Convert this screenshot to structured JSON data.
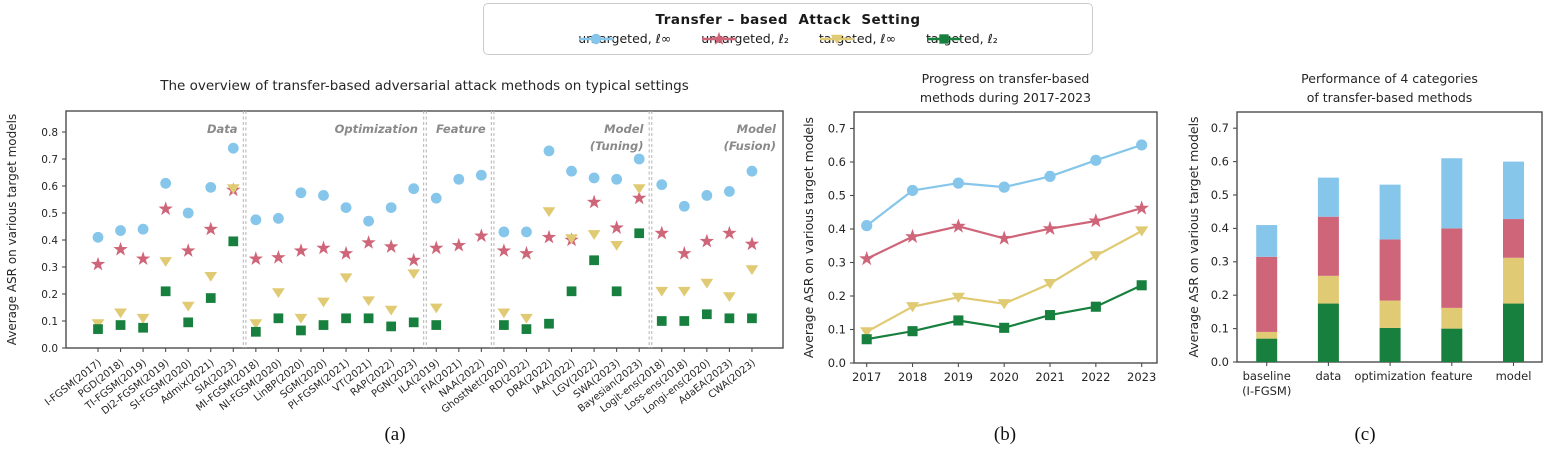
{
  "page": {
    "background": "#ffffff"
  },
  "palette": {
    "untargeted_linf": "#85c6ea",
    "untargeted_l2": "#cf6579",
    "targeted_linf": "#e0ca74",
    "targeted_l2": "#17803e",
    "section_label": "#8a8a8a",
    "axis": "#4d4d4d",
    "text": "#262626"
  },
  "legend": {
    "title": "Transfer – based  Attack  Setting",
    "entries": [
      {
        "label": "untargeted, ℓ∞",
        "marker": "circle",
        "color": "#85c6ea"
      },
      {
        "label": "untargeted, ℓ₂",
        "marker": "star",
        "color": "#cf6579"
      },
      {
        "label": "targeted, ℓ∞",
        "marker": "triangle-down",
        "color": "#e0ca74"
      },
      {
        "label": "targeted, ℓ₂",
        "marker": "square",
        "color": "#17803e"
      }
    ]
  },
  "captions": {
    "a": "(a)",
    "b": "(b)",
    "c": "(c)"
  },
  "chart_data": [
    {
      "id": "overview",
      "type": "scatter",
      "title": "The overview of transfer-based adversarial attack methods on typical settings",
      "ylabel": "Average ASR on various target models",
      "ylim": [
        0.0,
        0.88
      ],
      "yticks": [
        "0.0",
        "0.1",
        "0.2",
        "0.3",
        "0.4",
        "0.5",
        "0.6",
        "0.7",
        "0.8"
      ],
      "grid": false,
      "sections": [
        {
          "label": "Data",
          "start": 0,
          "end": 6
        },
        {
          "label": "Optimization",
          "start": 7,
          "end": 14
        },
        {
          "label": "Feature",
          "start": 15,
          "end": 17
        },
        {
          "label": "Model\n(Tuning)",
          "start": 18,
          "end": 24
        },
        {
          "label": "Model\n(Fusion)",
          "start": 25,
          "end": 29
        }
      ],
      "categories": [
        "I-FGSM(2017)",
        "PGD(2018)",
        "TI-FGSM(2019)",
        "DI2-FGSM(2019)",
        "SI-FGSM(2020)",
        "Admix(2021)",
        "SIA(2023)",
        "MI-FGSM(2018)",
        "NI-FGSM(2020)",
        "LinBP(2020)",
        "SGM(2020)",
        "PI-FGSM(2021)",
        "VT(2021)",
        "RAP(2022)",
        "PGN(2023)",
        "ILA(2019)",
        "FIA(2021)",
        "NAA(2022)",
        "GhostNet(2020)",
        "RD(2022)",
        "DRA(2022)",
        "IAA(2022)",
        "LGV(2022)",
        "SWA(2023)",
        "Bayesian(2023)",
        "Logit-ens(2018)",
        "Loss-ens(2018)",
        "Longi-ens(2020)",
        "AdaEA(2023)",
        "CWA(2023)"
      ],
      "series": [
        {
          "name": "untargeted, ℓ∞",
          "marker": "circle",
          "color": "#85c6ea",
          "values": [
            0.41,
            0.435,
            0.44,
            0.61,
            0.5,
            0.595,
            0.74,
            0.475,
            0.48,
            0.575,
            0.565,
            0.52,
            0.47,
            0.52,
            0.59,
            0.555,
            0.625,
            0.64,
            0.43,
            0.43,
            0.73,
            0.655,
            0.63,
            0.625,
            0.7,
            0.605,
            0.525,
            0.565,
            0.58,
            0.655
          ]
        },
        {
          "name": "untargeted, ℓ₂",
          "marker": "star",
          "color": "#cf6579",
          "values": [
            0.31,
            0.365,
            0.33,
            0.515,
            0.36,
            0.44,
            0.585,
            0.33,
            0.335,
            0.36,
            0.37,
            0.35,
            0.39,
            0.375,
            0.325,
            0.37,
            0.38,
            0.415,
            0.36,
            0.35,
            0.41,
            0.4,
            0.54,
            0.445,
            0.555,
            0.425,
            0.35,
            0.395,
            0.425,
            0.385
          ]
        },
        {
          "name": "targeted, ℓ∞",
          "marker": "triangle-down",
          "color": "#e0ca74",
          "values": [
            0.09,
            0.13,
            0.11,
            0.32,
            0.155,
            0.265,
            0.59,
            0.09,
            0.205,
            0.11,
            0.17,
            0.26,
            0.175,
            0.14,
            0.275,
            0.148,
            null,
            null,
            0.13,
            0.11,
            0.505,
            0.405,
            0.42,
            0.38,
            0.59,
            0.21,
            0.21,
            0.24,
            0.19,
            0.29
          ]
        },
        {
          "name": "targeted, ℓ₂",
          "marker": "square",
          "color": "#17803e",
          "values": [
            0.07,
            0.085,
            0.075,
            0.21,
            0.095,
            0.185,
            0.395,
            0.06,
            0.11,
            0.065,
            0.085,
            0.11,
            0.11,
            0.08,
            0.095,
            0.085,
            null,
            null,
            0.085,
            0.07,
            0.09,
            0.21,
            0.325,
            0.21,
            0.425,
            0.1,
            0.1,
            0.125,
            0.11,
            0.11
          ]
        }
      ]
    },
    {
      "id": "progress",
      "type": "line",
      "title": "Progress on transfer-based\nmethods during 2017-2023",
      "ylabel": "Average ASR on various target models",
      "ylim": [
        0.0,
        0.75
      ],
      "yticks": [
        "0.0",
        "0.1",
        "0.2",
        "0.3",
        "0.4",
        "0.5",
        "0.6",
        "0.7"
      ],
      "grid": false,
      "x": [
        "2017",
        "2018",
        "2019",
        "2020",
        "2021",
        "2022",
        "2023"
      ],
      "series": [
        {
          "name": "untargeted, ℓ∞",
          "marker": "circle",
          "color": "#85c6ea",
          "values": [
            0.41,
            0.515,
            0.537,
            0.525,
            0.557,
            0.605,
            0.651
          ]
        },
        {
          "name": "untargeted, ℓ₂",
          "marker": "star",
          "color": "#cf6579",
          "values": [
            0.311,
            0.377,
            0.408,
            0.372,
            0.401,
            0.424,
            0.462
          ]
        },
        {
          "name": "targeted, ℓ∞",
          "marker": "triangle-down",
          "color": "#e0ca74",
          "values": [
            0.093,
            0.168,
            0.196,
            0.177,
            0.237,
            0.32,
            0.394
          ]
        },
        {
          "name": "targeted, ℓ₂",
          "marker": "square",
          "color": "#17803e",
          "values": [
            0.071,
            0.095,
            0.127,
            0.105,
            0.143,
            0.168,
            0.232
          ]
        }
      ]
    },
    {
      "id": "categories",
      "type": "stacked-bar",
      "title": "Performance of 4 categories\nof transfer-based methods",
      "ylabel": "Average ASR on various target models",
      "ylim": [
        0.0,
        0.75
      ],
      "yticks": [
        "0.0",
        "0.1",
        "0.2",
        "0.3",
        "0.4",
        "0.5",
        "0.6",
        "0.7"
      ],
      "grid": false,
      "categories": [
        "baseline\n(I-FGSM)",
        "data",
        "optimization",
        "feature",
        "model"
      ],
      "series": [
        {
          "name": "targeted, ℓ₂",
          "color": "#17803e",
          "values": [
            0.07,
            0.175,
            0.102,
            0.1,
            0.175
          ]
        },
        {
          "name": "targeted, ℓ∞",
          "color": "#e0ca74",
          "values": [
            0.02,
            0.083,
            0.082,
            0.062,
            0.137
          ]
        },
        {
          "name": "untargeted, ℓ₂",
          "color": "#cf6579",
          "values": [
            0.225,
            0.177,
            0.183,
            0.238,
            0.116
          ]
        },
        {
          "name": "untargeted, ℓ∞",
          "color": "#85c6ea",
          "values": [
            0.095,
            0.117,
            0.164,
            0.21,
            0.172
          ]
        }
      ]
    }
  ]
}
